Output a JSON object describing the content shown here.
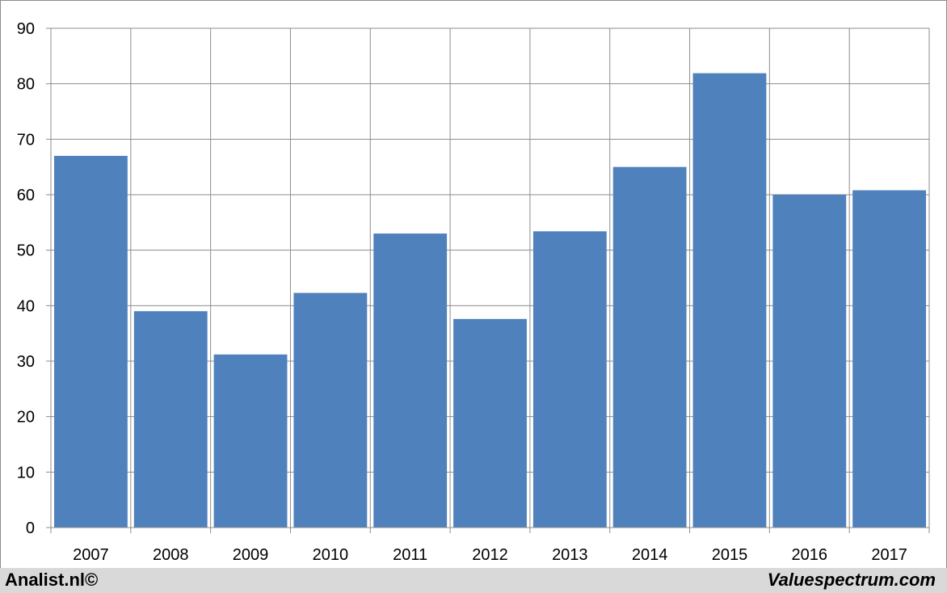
{
  "chart_data": {
    "type": "bar",
    "title": "",
    "xlabel": "",
    "ylabel": "",
    "categories": [
      "2007",
      "2008",
      "2009",
      "2010",
      "2011",
      "2012",
      "2013",
      "2014",
      "2015",
      "2016",
      "2017"
    ],
    "values": [
      67,
      39,
      31.2,
      42.3,
      53,
      37.6,
      53.4,
      65,
      81.9,
      60,
      60.8
    ],
    "ylim": [
      0,
      90
    ],
    "yticks": [
      0,
      10,
      20,
      30,
      40,
      50,
      60,
      70,
      80,
      90
    ],
    "grid": true,
    "legend": "none",
    "bar_color": "#4f81bd"
  },
  "footer": {
    "left_text": "Analist.nl©",
    "right_text": "Valuespectrum.com"
  }
}
